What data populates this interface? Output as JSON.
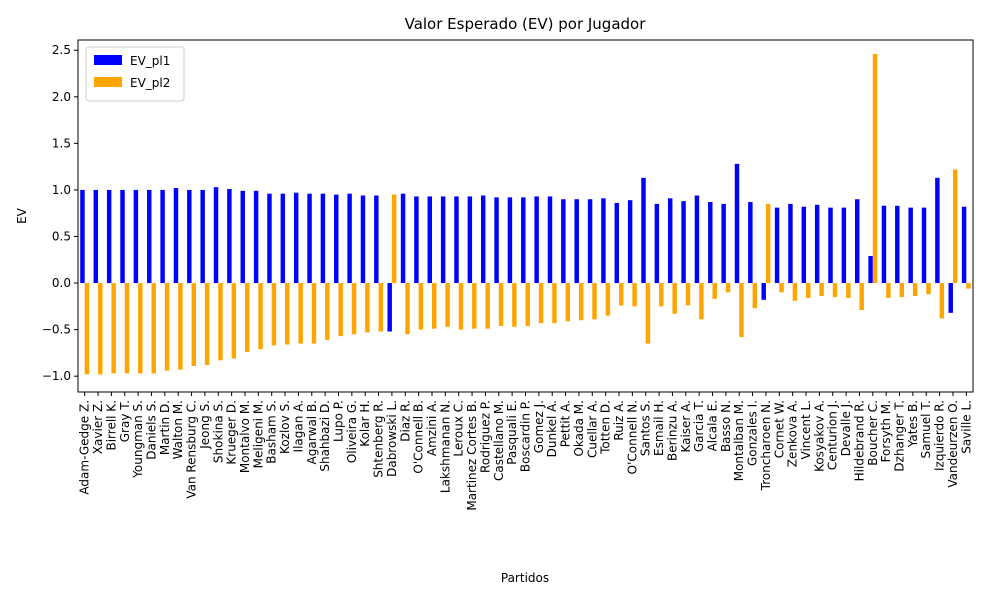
{
  "chart_data": {
    "type": "bar",
    "title": "Valor Esperado (EV) por Jugador",
    "xlabel": "Partidos",
    "ylabel": "EV",
    "categories": [
      "Adam-Gedge Z.",
      "Xavier Z.",
      "Birrell K.",
      "Gray T.",
      "Youngman S.",
      "Daniels S.",
      "Martin D.",
      "Walton M.",
      "Van Rensburg C.",
      "Jeong S.",
      "Shokina S.",
      "Krueger D.",
      "Montalvo M.",
      "Meligeni M.",
      "Basham S.",
      "Kozlov S.",
      "Ilagan A.",
      "Agarwal B.",
      "Shahbazi D.",
      "Lupo P.",
      "Oliveira G.",
      "Kolar H.",
      "Shtenberg R.",
      "Dabrowski L.",
      "Diaz R.",
      "O'Connell B.",
      "Amzini A.",
      "Lakshmanan N.",
      "Leroux C.",
      "Martinez Cortes B.",
      "Rodriguez P.",
      "Castellano M.",
      "Pasquali E.",
      "Boscardin P.",
      "Gomez J.",
      "Dunkel A.",
      "Pettit A.",
      "Okada M.",
      "Cuellar A.",
      "Totten D.",
      "Ruiz A.",
      "O'Connell N.",
      "Santos S.",
      "Esmail H.",
      "Berinzu A.",
      "Kaiser A.",
      "Garcia T.",
      "Alcala E.",
      "Basso N.",
      "Montalban M.",
      "Gonzales I.",
      "Troncharoen N.",
      "Cornet W.",
      "Zenkova A.",
      "Vincent L.",
      "Kosyakov A.",
      "Centurion J.",
      "Devalle J.",
      "Hildebrand R.",
      "Boucher C.",
      "Forsyth M.",
      "Dzhanger T.",
      "Yates B.",
      "Samuel T.",
      "Izquierdo R.",
      "Vandeurzen O.",
      "Saville L."
    ],
    "series": [
      {
        "name": "EV_pl1",
        "color": "#0000ff",
        "values": [
          1.0,
          1.0,
          1.0,
          1.0,
          1.0,
          1.0,
          1.0,
          1.02,
          1.0,
          1.0,
          1.03,
          1.01,
          0.99,
          0.99,
          0.96,
          0.96,
          0.97,
          0.96,
          0.96,
          0.95,
          0.96,
          0.94,
          0.94,
          -0.52,
          0.96,
          0.93,
          0.93,
          0.93,
          0.93,
          0.93,
          0.94,
          0.92,
          0.92,
          0.92,
          0.93,
          0.93,
          0.9,
          0.9,
          0.9,
          0.91,
          0.86,
          0.89,
          1.13,
          0.85,
          0.91,
          0.88,
          0.94,
          0.87,
          0.85,
          1.28,
          0.87,
          -0.18,
          0.81,
          0.85,
          0.82,
          0.84,
          0.81,
          0.81,
          0.9,
          0.29,
          0.83,
          0.83,
          0.81,
          0.81,
          1.13,
          -0.32,
          0.82
        ]
      },
      {
        "name": "EV_pl2",
        "color": "#ffa500",
        "values": [
          -0.98,
          -0.98,
          -0.97,
          -0.97,
          -0.97,
          -0.97,
          -0.94,
          -0.93,
          -0.89,
          -0.88,
          -0.83,
          -0.81,
          -0.74,
          -0.71,
          -0.67,
          -0.66,
          -0.65,
          -0.65,
          -0.61,
          -0.57,
          -0.55,
          -0.53,
          -0.52,
          0.95,
          -0.55,
          -0.5,
          -0.49,
          -0.47,
          -0.5,
          -0.49,
          -0.49,
          -0.46,
          -0.47,
          -0.46,
          -0.43,
          -0.43,
          -0.41,
          -0.4,
          -0.39,
          -0.35,
          -0.24,
          -0.25,
          -0.65,
          -0.25,
          -0.33,
          -0.24,
          -0.39,
          -0.17,
          -0.1,
          -0.58,
          -0.27,
          0.85,
          -0.1,
          -0.19,
          -0.16,
          -0.14,
          -0.15,
          -0.16,
          -0.29,
          2.46,
          -0.16,
          -0.15,
          -0.14,
          -0.12,
          -0.38,
          1.22,
          -0.06
        ]
      }
    ],
    "ylim": [
      -1.17,
      2.61
    ],
    "yticks": [
      {
        "value": -1.0,
        "label": "−1.0"
      },
      {
        "value": -0.5,
        "label": "−0.5"
      },
      {
        "value": 0,
        "label": "0.0"
      },
      {
        "value": 0.5,
        "label": "0.5"
      },
      {
        "value": 1.0,
        "label": "1.0"
      },
      {
        "value": 1.5,
        "label": "1.5"
      },
      {
        "value": 2.0,
        "label": "2.0"
      },
      {
        "value": 2.5,
        "label": "2.5"
      }
    ],
    "legend": "upper left",
    "grid": false
  }
}
